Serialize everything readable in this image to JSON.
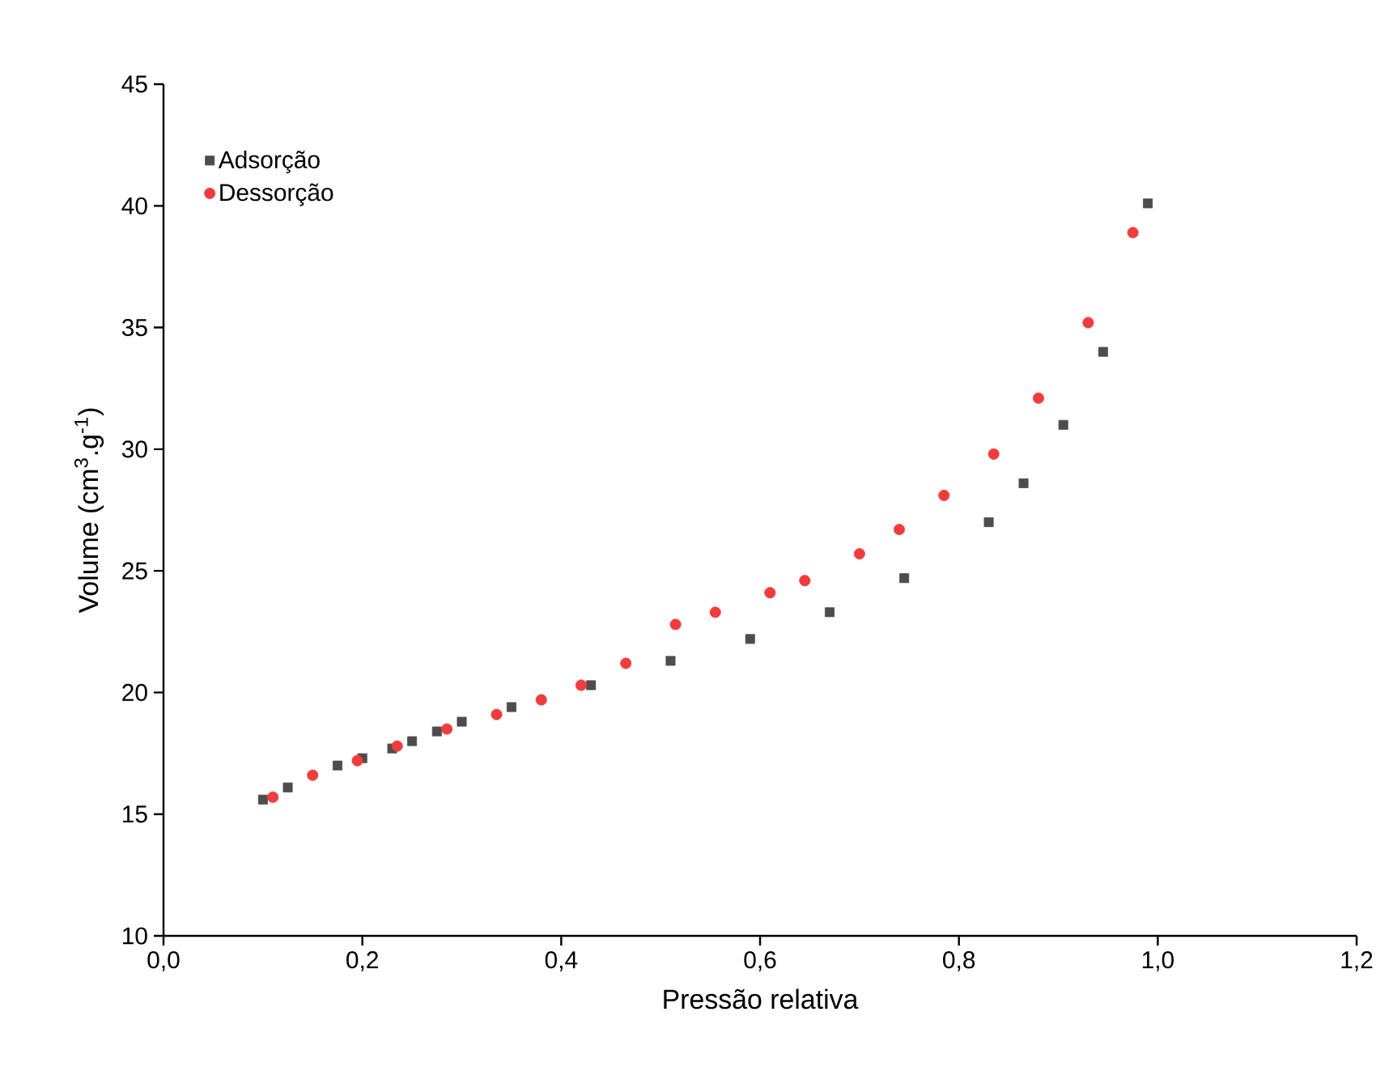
{
  "chart_data": {
    "type": "scatter",
    "xlabel": "Pressão relativa",
    "ylabel": "Volume (cm$^{3}$.g$^{-1}$)",
    "xlim": [
      0,
      1.2
    ],
    "ylim": [
      10,
      45
    ],
    "xticks": [
      {
        "value": 0,
        "label": "0,0"
      },
      {
        "value": 0.2,
        "label": "0,2"
      },
      {
        "value": 0.4,
        "label": "0,4"
      },
      {
        "value": 0.6,
        "label": "0,6"
      },
      {
        "value": 0.8,
        "label": "0,8"
      },
      {
        "value": 1.0,
        "label": "1,0"
      },
      {
        "value": 1.2,
        "label": "1,2"
      }
    ],
    "yticks": [
      10,
      15,
      20,
      25,
      30,
      35,
      40,
      45
    ],
    "legend": "top left",
    "grid": false,
    "series": [
      {
        "name": "Adsorção",
        "color": "#4d4d4d",
        "marker": "square",
        "x": [
          0.1,
          0.125,
          0.175,
          0.2,
          0.23,
          0.25,
          0.275,
          0.3,
          0.35,
          0.43,
          0.51,
          0.59,
          0.67,
          0.745,
          0.83,
          0.865,
          0.905,
          0.945,
          0.99
        ],
        "values": [
          15.6,
          16.1,
          17.0,
          17.3,
          17.7,
          18.0,
          18.4,
          18.8,
          19.4,
          20.3,
          21.3,
          22.2,
          23.3,
          24.7,
          27.0,
          28.6,
          31.0,
          34.0,
          40.1
        ]
      },
      {
        "name": "Dessorção",
        "color": "#f03c3c",
        "marker": "circle",
        "x": [
          0.11,
          0.15,
          0.195,
          0.235,
          0.285,
          0.335,
          0.38,
          0.42,
          0.465,
          0.515,
          0.555,
          0.61,
          0.645,
          0.7,
          0.74,
          0.785,
          0.835,
          0.88,
          0.93,
          0.975
        ],
        "values": [
          15.7,
          16.6,
          17.2,
          17.8,
          18.5,
          19.1,
          19.7,
          20.3,
          21.2,
          22.8,
          23.3,
          24.1,
          24.6,
          25.7,
          26.7,
          28.1,
          29.8,
          32.1,
          35.2,
          38.9
        ]
      }
    ]
  }
}
